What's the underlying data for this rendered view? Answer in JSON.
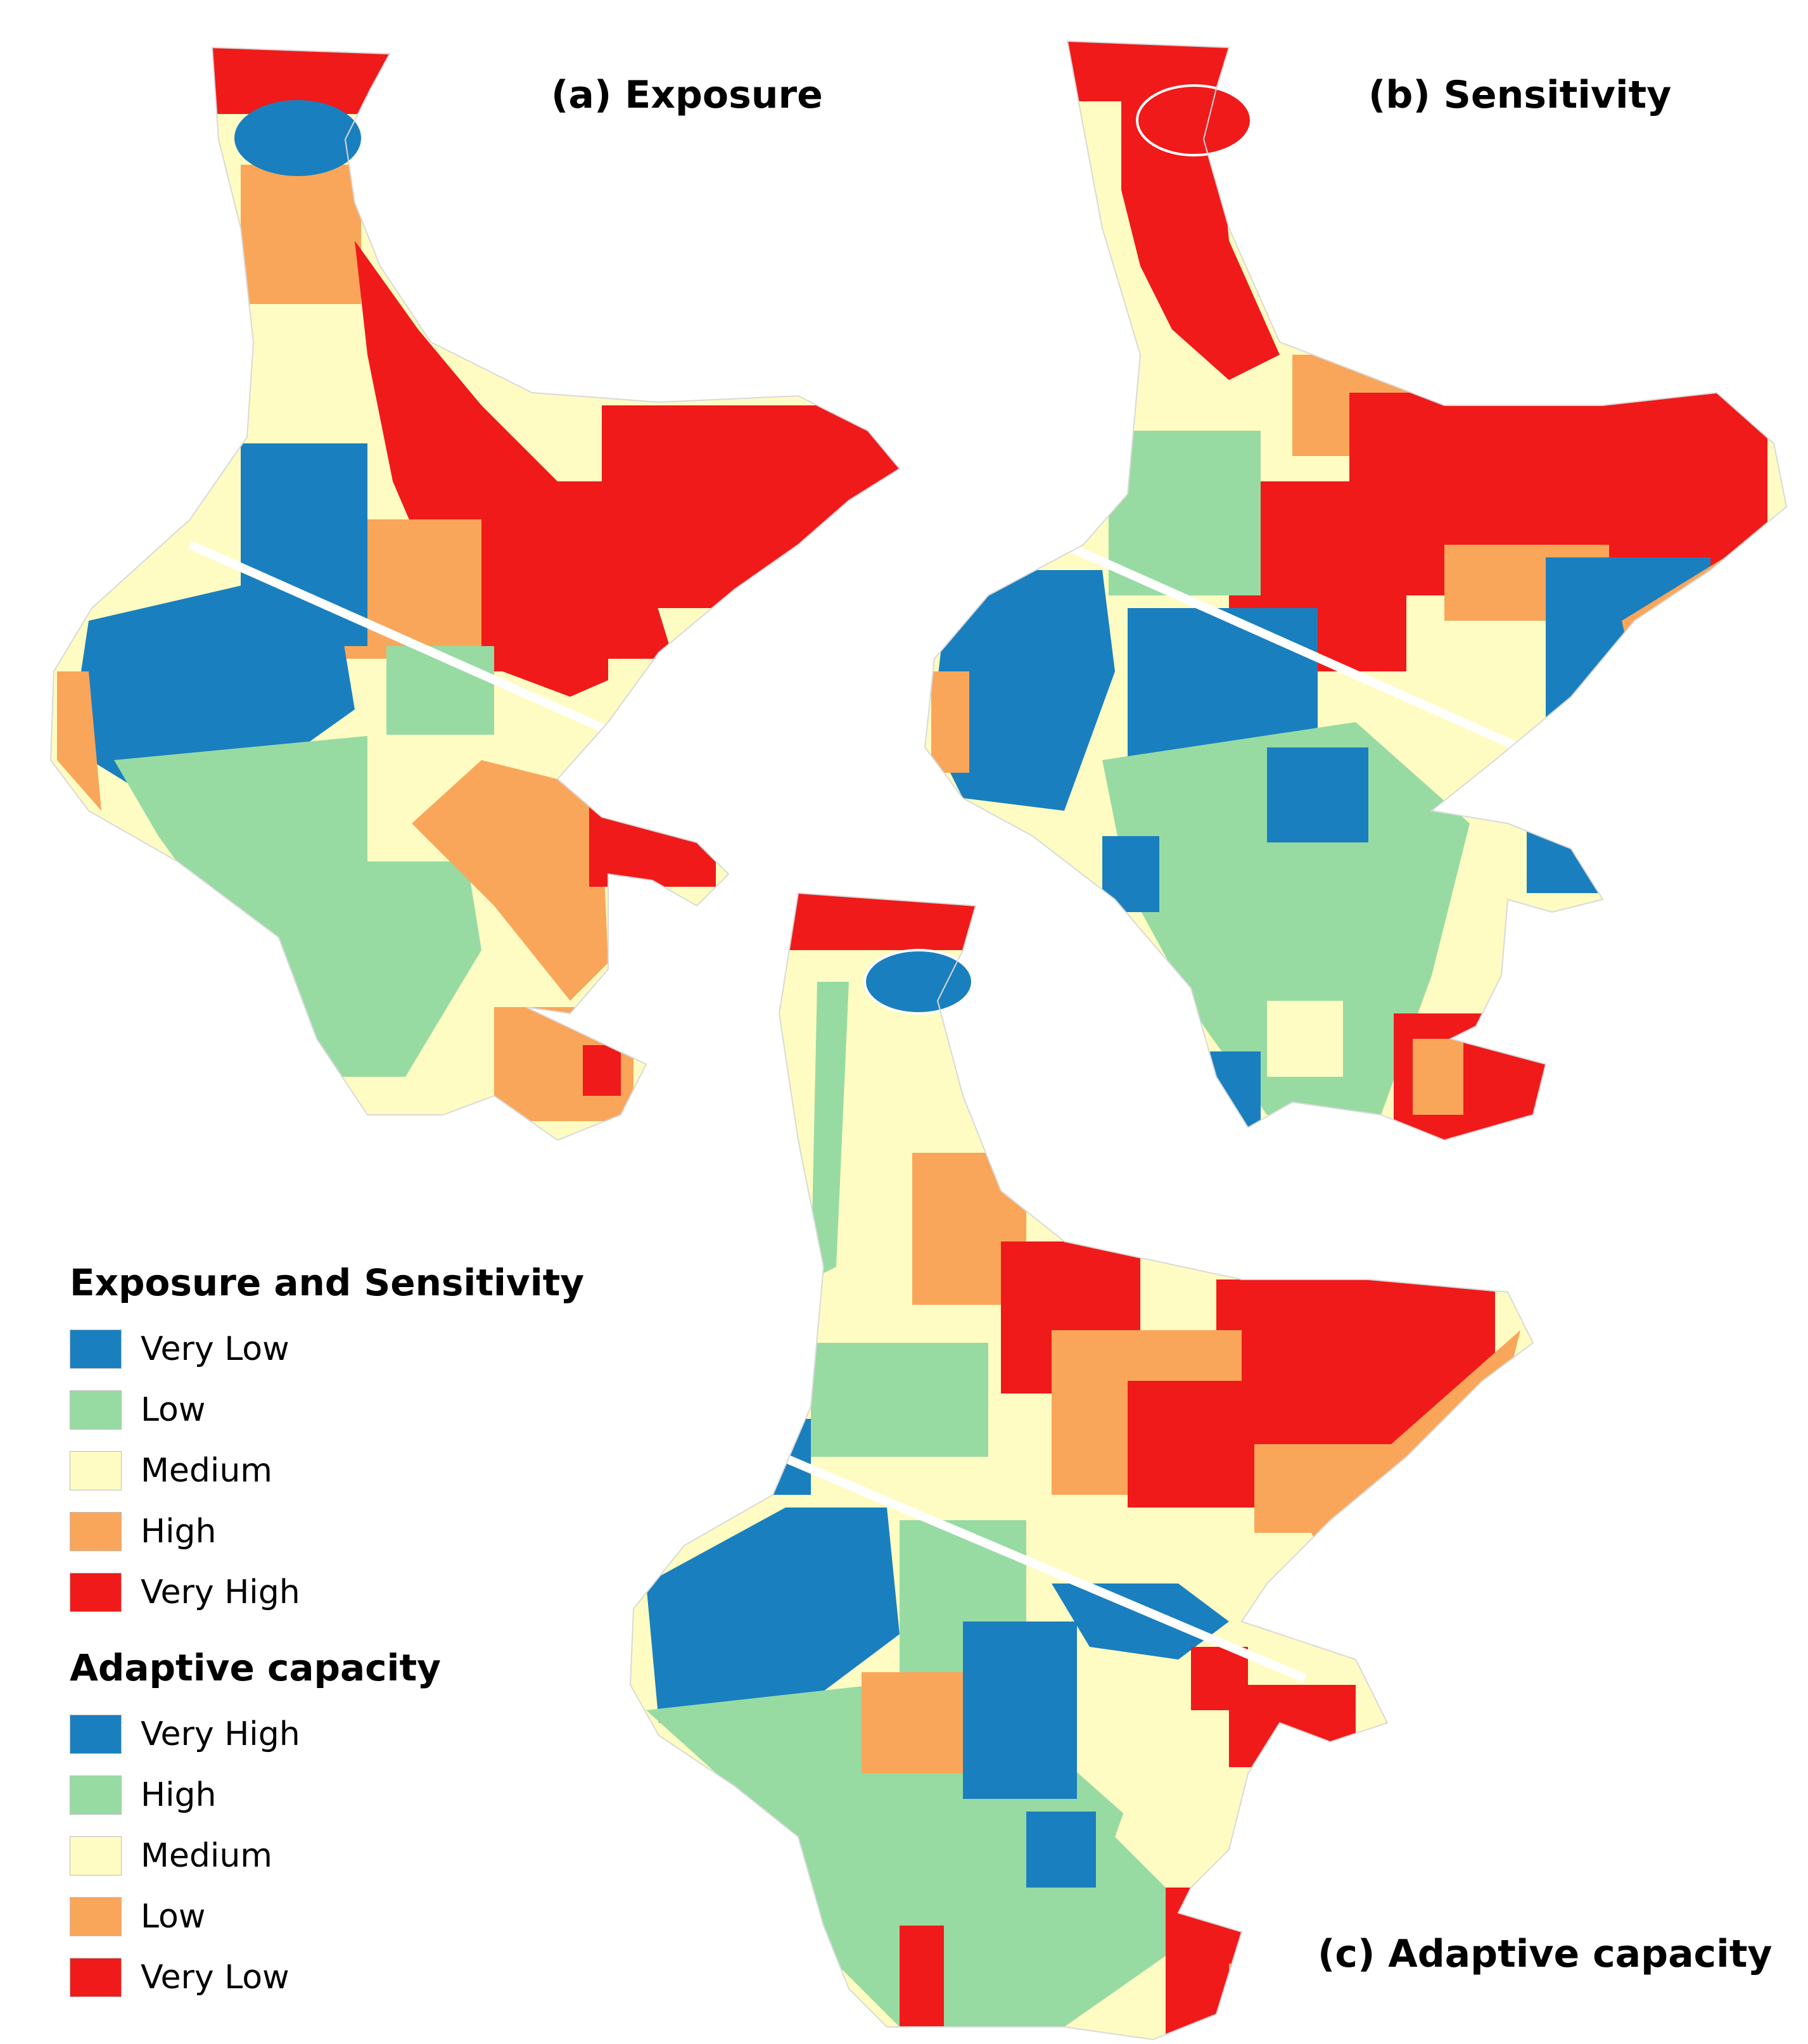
{
  "colors": {
    "very_low_risk": "#1a7fbf",
    "low_risk": "#97dba3",
    "medium": "#fefcc2",
    "high_risk": "#f9a65a",
    "very_high_risk": "#f01a1a"
  },
  "panels": {
    "a": {
      "title": "(a) Exposure"
    },
    "b": {
      "title": "(b) Sensitivity"
    },
    "c": {
      "title": "(c) Adaptive capacity"
    }
  },
  "legend": {
    "groups": [
      {
        "heading": "Exposure and Sensitivity",
        "items": [
          {
            "label": "Very Low",
            "color": "#1a7fbf"
          },
          {
            "label": "Low",
            "color": "#97dba3"
          },
          {
            "label": "Medium",
            "color": "#fefcc2"
          },
          {
            "label": "High",
            "color": "#f9a65a"
          },
          {
            "label": "Very High",
            "color": "#f01a1a"
          }
        ]
      },
      {
        "heading": "Adaptive capacity",
        "items": [
          {
            "label": "Very High",
            "color": "#1a7fbf"
          },
          {
            "label": "High",
            "color": "#97dba3"
          },
          {
            "label": "Medium",
            "color": "#fefcc2"
          },
          {
            "label": "Low",
            "color": "#f9a65a"
          },
          {
            "label": "Very Low",
            "color": "#f01a1a"
          }
        ]
      }
    ]
  }
}
